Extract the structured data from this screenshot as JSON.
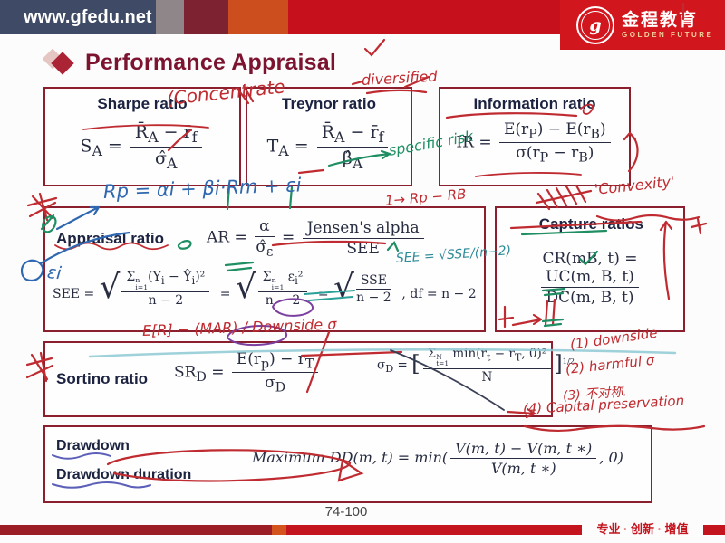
{
  "header": {
    "url": "www.gfedu.net",
    "logo": {
      "monogram": "g",
      "cn": "金程教育",
      "en": "GOLDEN FUTURE"
    }
  },
  "slide": {
    "title": "Performance Appraisal"
  },
  "boxes": {
    "sharpe": {
      "title": "Sharpe ratio",
      "formula": "S<sub>A</sub> = <span class='frac'><span class='num'>R̄<sub>A</sub> − r̄<sub>f</sub></span><span class='den'>σ̂<sub>A</sub></span></span>"
    },
    "treynor": {
      "title": "Treynor ratio",
      "formula": "T<sub>A</sub> = <span class='frac'><span class='num'>R̄<sub>A</sub> − r̄<sub>f</sub></span><span class='den'>β̂<sub>A</sub></span></span>"
    },
    "information": {
      "title": "Information ratio",
      "formula": "IR = <span class='frac'><span class='num'>E(r<sub>P</sub>) − E(r<sub>B</sub>)</span><span class='den'>σ(r<sub>P</sub> − r<sub>B</sub>)</span></span>"
    },
    "appraisal": {
      "title": "Appraisal ratio",
      "formula_ar": "AR = <span class='frac'><span class='num'>α</span><span class='den'>σ̂<sub>ε</sub></span></span> = <span class='frac'><span class='num'>Jensen's alpha</span><span class='den'>SEE</span></span>",
      "formula_see": "SEE = <span class='sqrt'><span class='rad'>√</span><span class='radi'><span class='frac'><span class='num'>Σ<span class='ss'><sup>n</sup><sub>i=1</sub></span>(Y<sub>i</sub> − Ŷ<sub>i</sub>)²</span><span class='den'>n − 2</span></span></span></span> = <span class='sqrt'><span class='rad'>√</span><span class='radi'><span class='frac'><span class='num'>Σ<span class='ss'><sup>n</sup><sub>i=1</sub></span> ε<sub>i</sub>²</span><span class='den'>n − 2</span></span></span></span> = <span class='sqrt'><span class='rad'>√</span><span class='radi'><span class='frac'><span class='num'>SSE</span><span class='den'>n − 2</span></span></span></span> , df = n − 2"
    },
    "capture": {
      "title": "Capture ratios",
      "formula": "CR(mB, t) = <span class='frac'><span class='num'>UC(m, B, t)</span><span class='den'>DC(m, B, t)</span></span>"
    },
    "sortino": {
      "title": "Sortino ratio",
      "formula_sr": "SR<sub>D</sub> = <span class='frac'><span class='num'>E(r<sub>p</sub>) − r<sub>T</sub></span><span class='den'>σ<sub>D</sub></span></span>",
      "formula_sigma": "σ<sub>D</sub> = <span class='brak'>[</span><span class='frac'><span class='num'>Σ<span class='ss'><sup>N</sup><sub>t=1</sub></span> min(r<sub>t</sub> − r<sub>T</sub>, 0)²</span><span class='den'>N</span></span><span class='brak'>]</span><sup class='pow'>1/2</sup>"
    },
    "drawdown": {
      "title_1": "Drawdown",
      "title_2": "Drawdown duration",
      "formula": "Maximum DD(m, t) = min(<span class='frac'><span class='num'>V(m, t) − V(m, t ∗)</span><span class='den'>V(m, t ∗)</span></span>, 0)"
    }
  },
  "annotations": {
    "concentrate": "(Concentrate",
    "diversified": "diversified",
    "specific_risk": "specific risk",
    "regression": "Rp = αi + βi·Rm + εi",
    "excess": "1→ Rp − RB",
    "convexity": "'Convexity'",
    "epsilon": "εi",
    "see_note": "SEE = √SSE/(n−2)",
    "mar_note": "E[R] − (MAR) / Downside σ",
    "list_1": "(1) downside",
    "list_2": "(2) harmful σ",
    "list_3": "(3) 不对称.",
    "list_4": "(4) Capital preservation"
  },
  "footer": {
    "page": "74-100",
    "slogan": "专业 · 创新 · 增值"
  },
  "colors": {
    "brand_red": "#d2161e",
    "bar_red": "#c4141e",
    "box_border": "#8c1f2d",
    "title_maroon": "#7c1430",
    "ink_red": "#bf2b30",
    "ink_green": "#1f8f63",
    "ink_blue": "#2f68b0"
  }
}
